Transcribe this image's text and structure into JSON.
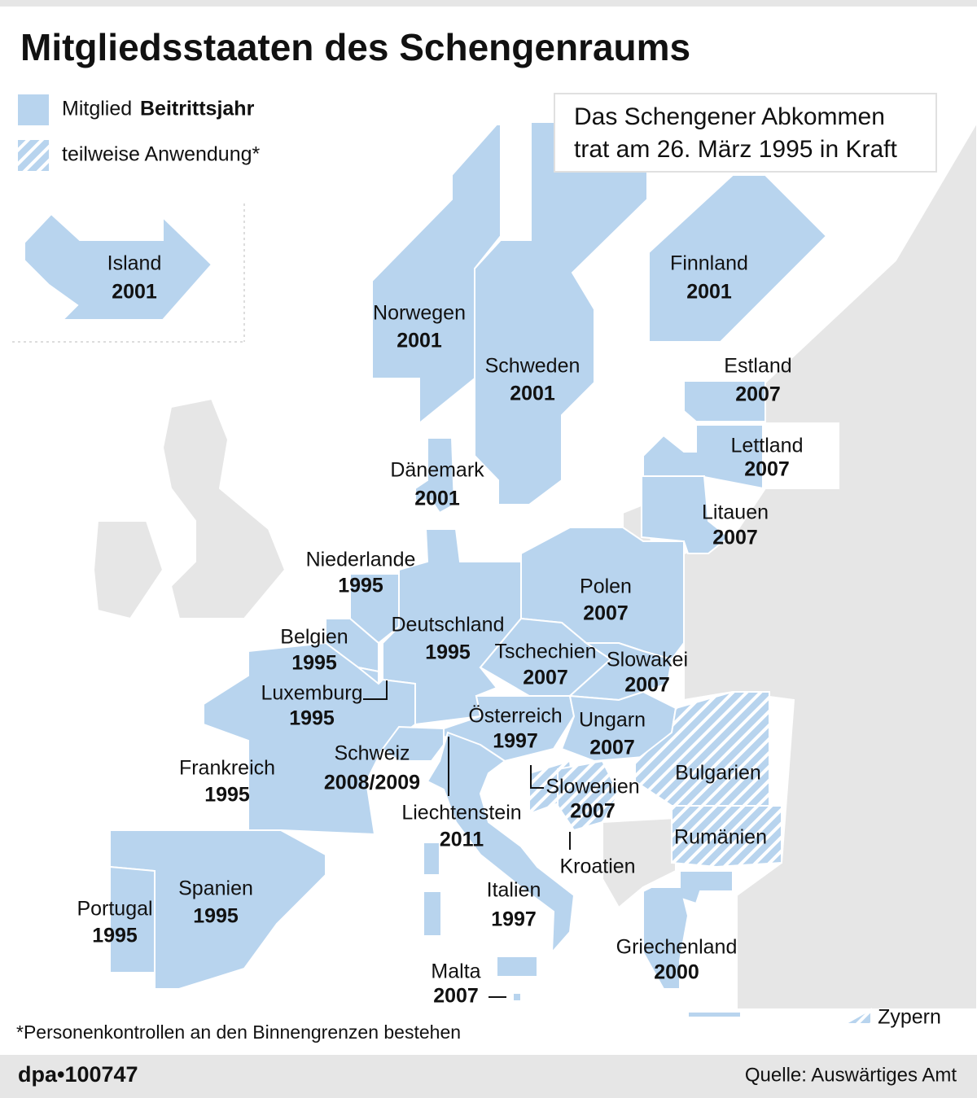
{
  "header": {
    "title": "Mitgliedsstaaten des Schengenraums"
  },
  "legend": {
    "member": "Mitglied",
    "year": "Beitrittsjahr",
    "partial": "teilweise Anwendung*"
  },
  "note": {
    "lines": [
      "Das Schengener Abkommen",
      "trat am 26. März 1995 in Kraft"
    ]
  },
  "countries": [
    {
      "name": "Island",
      "year": "2001"
    },
    {
      "name": "Norwegen",
      "year": "2001"
    },
    {
      "name": "Schweden",
      "year": "2001"
    },
    {
      "name": "Finnland",
      "year": "2001"
    },
    {
      "name": "Estland",
      "year": "2007"
    },
    {
      "name": "Lettland",
      "year": "2007"
    },
    {
      "name": "Litauen",
      "year": "2007"
    },
    {
      "name": "Dänemark",
      "year": "2001"
    },
    {
      "name": "Niederlande",
      "year": "1995"
    },
    {
      "name": "Polen",
      "year": "2007"
    },
    {
      "name": "Deutschland",
      "year": "1995"
    },
    {
      "name": "Belgien",
      "year": "1995"
    },
    {
      "name": "Tschechien",
      "year": "2007"
    },
    {
      "name": "Slowakei",
      "year": "2007"
    },
    {
      "name": "Luxemburg",
      "year": "1995"
    },
    {
      "name": "Österreich",
      "year": "1997"
    },
    {
      "name": "Ungarn",
      "year": "2007"
    },
    {
      "name": "Frankreich",
      "year": "1995"
    },
    {
      "name": "Schweiz",
      "year": "2008/2009"
    },
    {
      "name": "Slowenien",
      "year": "2007"
    },
    {
      "name": "Bulgarien"
    },
    {
      "name": "Rumänien"
    },
    {
      "name": "Liechtenstein",
      "year": "2011"
    },
    {
      "name": "Kroatien"
    },
    {
      "name": "Italien",
      "year": "1997"
    },
    {
      "name": "Spanien",
      "year": "1995"
    },
    {
      "name": "Portugal",
      "year": "1995"
    },
    {
      "name": "Griechenland",
      "year": "2000"
    },
    {
      "name": "Malta",
      "year": "2007"
    },
    {
      "name": "Zypern"
    }
  ],
  "footnote": "*Personenkontrollen an den Binnengrenzen bestehen",
  "footer": {
    "id": "dpa•100747",
    "source": "Quelle: Auswärtiges Amt"
  }
}
